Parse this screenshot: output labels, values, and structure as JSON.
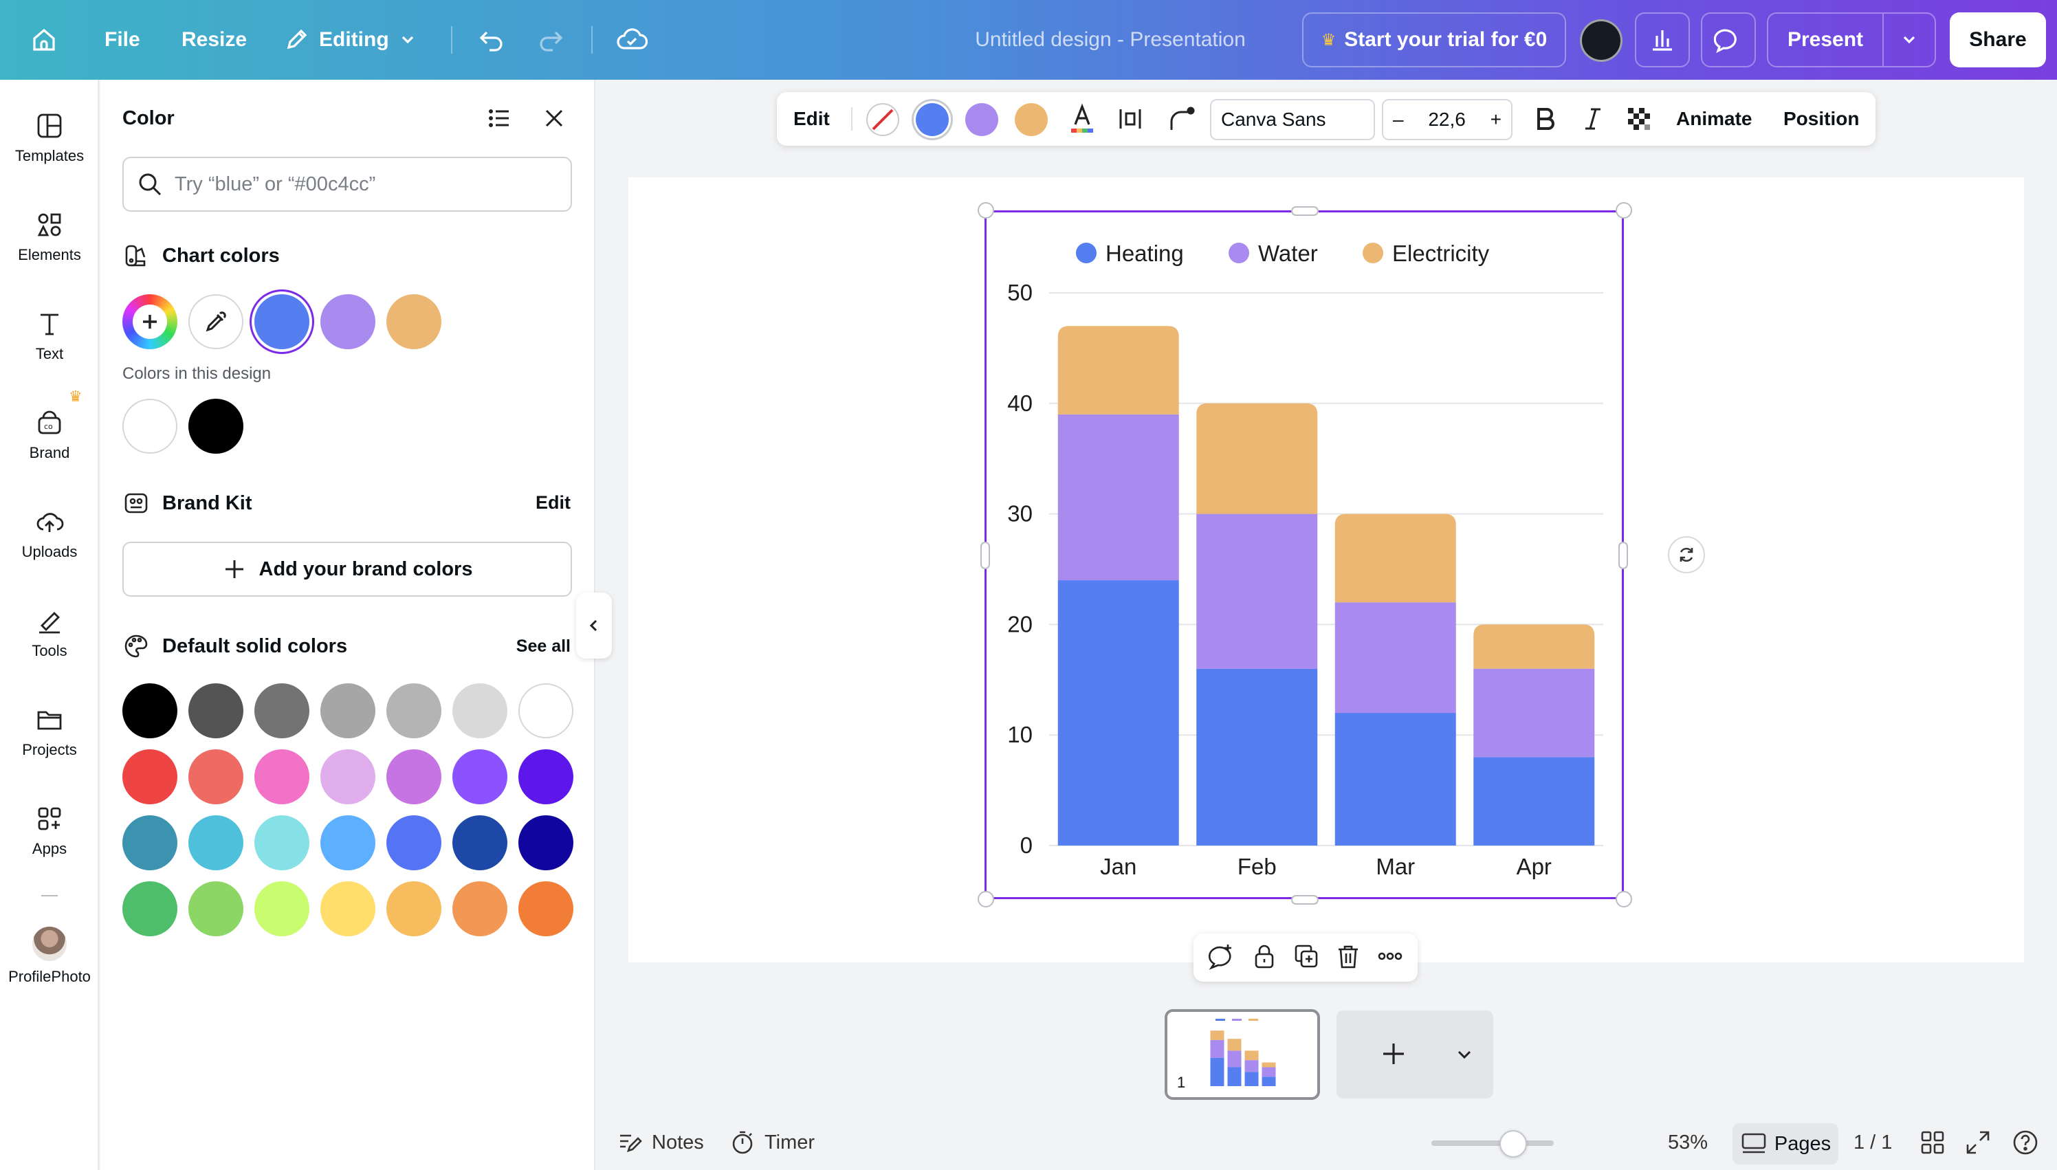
{
  "topbar": {
    "file_label": "File",
    "resize_label": "Resize",
    "editing_label": "Editing",
    "design_title": "Untitled design - Presentation",
    "trial_label": "Start your trial for €0",
    "present_label": "Present",
    "share_label": "Share"
  },
  "rail": {
    "items": [
      {
        "label": "Templates",
        "icon": "templates-icon"
      },
      {
        "label": "Elements",
        "icon": "elements-icon"
      },
      {
        "label": "Text",
        "icon": "text-icon"
      },
      {
        "label": "Brand",
        "icon": "brand-icon"
      },
      {
        "label": "Uploads",
        "icon": "uploads-icon"
      },
      {
        "label": "Tools",
        "icon": "tools-icon"
      },
      {
        "label": "Projects",
        "icon": "projects-icon"
      },
      {
        "label": "Apps",
        "icon": "apps-icon"
      },
      {
        "label": "ProfilePhoto",
        "icon": "profile-photo"
      }
    ]
  },
  "color_panel": {
    "title": "Color",
    "search_placeholder": "Try “blue” or “#00c4cc”",
    "chart_colors_title": "Chart colors",
    "chart_colors": [
      "#557ef0",
      "#a98aee",
      "#ebb772"
    ],
    "colors_in_design_label": "Colors in this design",
    "design_colors": [
      "#ffffff",
      "#000000"
    ],
    "brand_kit_title": "Brand Kit",
    "brand_kit_edit": "Edit",
    "add_brand_label": "Add your brand colors",
    "default_title": "Default solid colors",
    "see_all": "See all",
    "default_colors": [
      [
        "#000000",
        "#545454",
        "#737373",
        "#a6a6a6",
        "#b4b4b4",
        "#d9d9d9",
        "#ffffff"
      ],
      [
        "#ef4444",
        "#ee6b63",
        "#f272c8",
        "#e0aeed",
        "#c673e3",
        "#8c52ff",
        "#5e17eb"
      ],
      [
        "#3c93b0",
        "#4fc0dc",
        "#86e1e6",
        "#5cb0ff",
        "#5574f5",
        "#1d48a7",
        "#10069f"
      ],
      [
        "#4ebe6a",
        "#8bd665",
        "#c9fc6e",
        "#ffde6b",
        "#f7bc5d",
        "#f39755",
        "#f27d36"
      ]
    ]
  },
  "toolbar": {
    "edit_label": "Edit",
    "font_name": "Canva Sans",
    "font_size": "22,6",
    "animate_label": "Animate",
    "position_label": "Position",
    "series_colors": [
      "#557ef0",
      "#a98aee",
      "#ebb772"
    ]
  },
  "chart_data": {
    "type": "bar",
    "stacked": true,
    "categories": [
      "Jan",
      "Feb",
      "Mar",
      "Apr"
    ],
    "series": [
      {
        "name": "Heating",
        "color": "#557ef0",
        "values": [
          24,
          16,
          12,
          8
        ]
      },
      {
        "name": "Water",
        "color": "#a98aee",
        "values": [
          15,
          14,
          10,
          8
        ]
      },
      {
        "name": "Electricity",
        "color": "#ebb772",
        "values": [
          8,
          10,
          8,
          4
        ]
      }
    ],
    "y_ticks": [
      "0",
      "10",
      "20",
      "30",
      "40",
      "50"
    ],
    "ylim": [
      0,
      50
    ],
    "grid": true,
    "legend": "top"
  },
  "pages": {
    "thumb_number": "1"
  },
  "bottombar": {
    "notes_label": "Notes",
    "timer_label": "Timer",
    "zoom": "53%",
    "zoom_level": 0.53,
    "pages_label": "Pages",
    "page_count": "1 / 1"
  }
}
